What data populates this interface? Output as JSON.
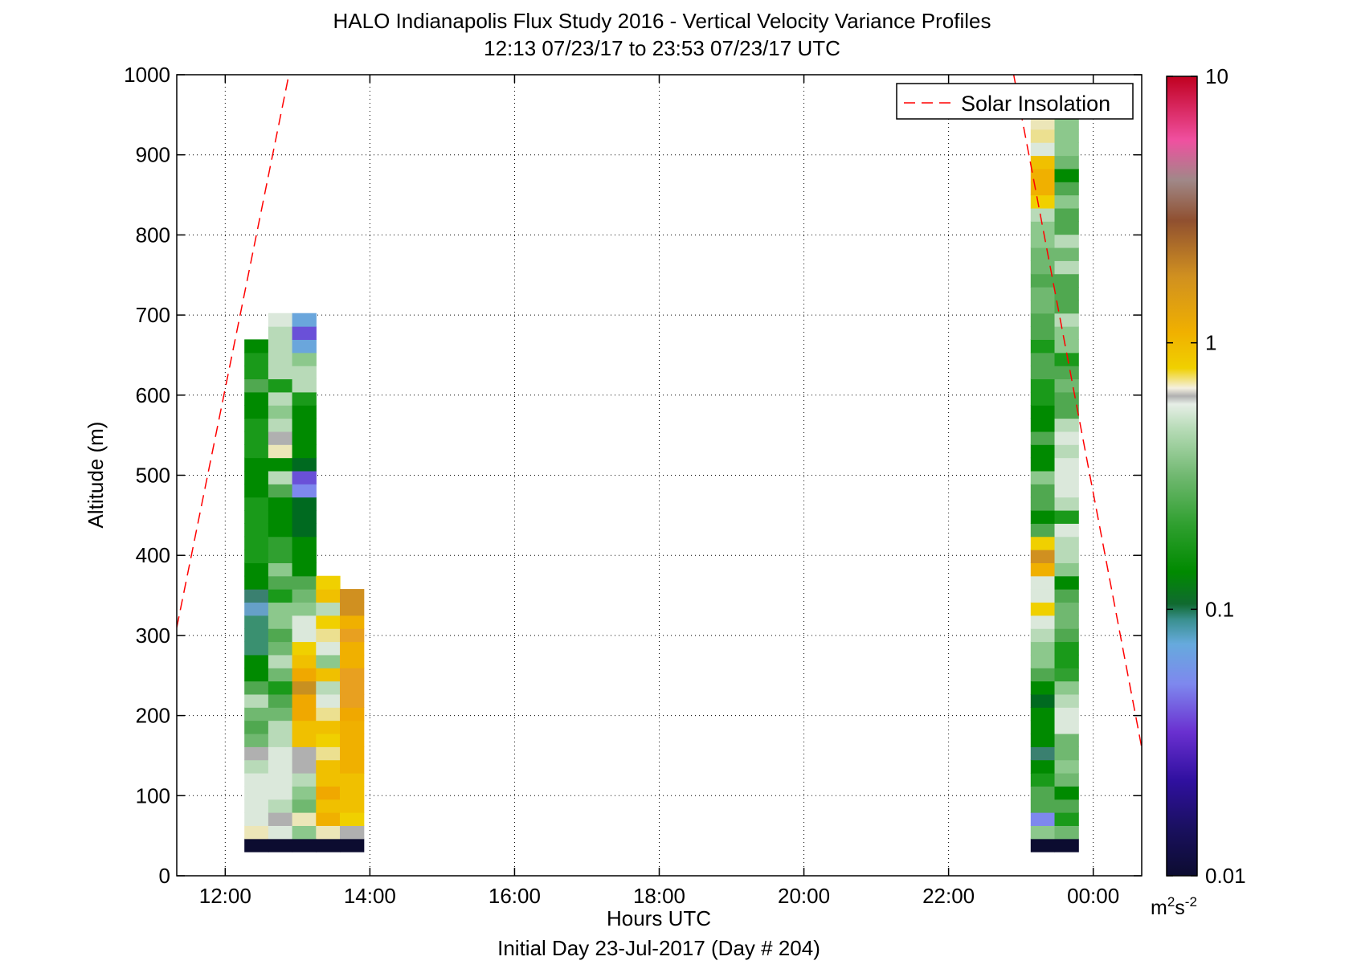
{
  "chart_data": {
    "type": "heatmap",
    "title": "HALO Indianapolis Flux Study 2016 - Vertical Velocity Variance Profiles",
    "subtitle": "12:13 07/23/17 to 23:53 07/23/17  UTC",
    "xlabel": "Hours UTC",
    "xlabel2": "Initial Day 23-Jul-2017 (Day # 204)",
    "ylabel": "Altitude (m)",
    "xlim": [
      11.33,
      24.67
    ],
    "ylim": [
      0,
      1000
    ],
    "x_ticks": [
      {
        "v": 12,
        "label": "12:00"
      },
      {
        "v": 14,
        "label": "14:00"
      },
      {
        "v": 16,
        "label": "16:00"
      },
      {
        "v": 18,
        "label": "18:00"
      },
      {
        "v": 20,
        "label": "20:00"
      },
      {
        "v": 22,
        "label": "22:00"
      },
      {
        "v": 24,
        "label": "00:00"
      }
    ],
    "y_ticks": [
      {
        "v": 0,
        "label": "0"
      },
      {
        "v": 100,
        "label": "100"
      },
      {
        "v": 200,
        "label": "200"
      },
      {
        "v": 300,
        "label": "300"
      },
      {
        "v": 400,
        "label": "400"
      },
      {
        "v": 500,
        "label": "500"
      },
      {
        "v": 600,
        "label": "600"
      },
      {
        "v": 700,
        "label": "700"
      },
      {
        "v": 800,
        "label": "800"
      },
      {
        "v": 900,
        "label": "900"
      },
      {
        "v": 1000,
        "label": "1000"
      }
    ],
    "grid": true,
    "legend": {
      "position": "top-right",
      "label": "Solar Insolation"
    },
    "colorbar": {
      "scale": "log",
      "min": 0.01,
      "max": 10,
      "ticks": [
        {
          "v": 0.01,
          "label": "0.01"
        },
        {
          "v": 0.1,
          "label": "0.1"
        },
        {
          "v": 1,
          "label": "1"
        },
        {
          "v": 10,
          "label": "10"
        }
      ],
      "unit_base": "m",
      "unit_sup1": "2",
      "unit_mid": "s",
      "unit_sup2": "-2",
      "stops": [
        [
          0.0,
          "#0c0c30"
        ],
        [
          0.06,
          "#1a1060"
        ],
        [
          0.12,
          "#3010a0"
        ],
        [
          0.18,
          "#6a30d0"
        ],
        [
          0.24,
          "#7e88ee"
        ],
        [
          0.29,
          "#66aadd"
        ],
        [
          0.32,
          "#3a9090"
        ],
        [
          0.34,
          "#106a30"
        ],
        [
          0.38,
          "#008a00"
        ],
        [
          0.44,
          "#30a030"
        ],
        [
          0.5,
          "#70b870"
        ],
        [
          0.56,
          "#b8dcb8"
        ],
        [
          0.59,
          "#e6eee6"
        ],
        [
          0.6,
          "#b0b0b0"
        ],
        [
          0.61,
          "#f4f0e0"
        ],
        [
          0.635,
          "#f0d000"
        ],
        [
          0.68,
          "#f0b000"
        ],
        [
          0.75,
          "#d09020"
        ],
        [
          0.82,
          "#905030"
        ],
        [
          0.87,
          "#a08888"
        ],
        [
          0.92,
          "#f050a0"
        ],
        [
          1.0,
          "#c00020"
        ]
      ]
    },
    "solar_insolation": {
      "series1": [
        [
          11.33,
          310
        ],
        [
          12.88,
          1000
        ]
      ],
      "series2": [
        [
          22.9,
          1000
        ],
        [
          24.67,
          160
        ]
      ]
    },
    "profiles": [
      {
        "x": 12.43,
        "width": 0.33,
        "bottom": 30,
        "bin": 16.4,
        "colors": [
          "#0c0c30",
          "#ece6b8",
          "#dbe8db",
          "#dbe8db",
          "#dbe8db",
          "#dbe8db",
          "#b8dab8",
          "#b0b0b0",
          "#70b870",
          "#50a850",
          "#70b870",
          "#b8dab8",
          "#50a850",
          "#008a00",
          "#008a00",
          "#3a9070",
          "#3a9070",
          "#3a9070",
          "#66a0c8",
          "#3a8070",
          "#008a00",
          "#008a00",
          "#1a9a1a",
          "#1a9a1a",
          "#1a9a1a",
          "#1a9a1a",
          "#1a9a1a",
          "#008a00",
          "#008a00",
          "#008a00",
          "#1a9a1a",
          "#1a9a1a",
          "#1a9a1a",
          "#008a00",
          "#008a00",
          "#50a850",
          "#1a9a1a",
          "#1a9a1a",
          "#008a00"
        ]
      },
      {
        "x": 12.76,
        "width": 0.33,
        "bottom": 30,
        "bin": 16.4,
        "colors": [
          "#0c0c30",
          "#dbe8db",
          "#b0b0b0",
          "#b8dab8",
          "#dbe8db",
          "#dbe8db",
          "#dbe8db",
          "#dbe8db",
          "#b8dab8",
          "#b8dab8",
          "#70b870",
          "#50a850",
          "#1a9a1a",
          "#70b870",
          "#b8dab8",
          "#70b870",
          "#50a850",
          "#8cc88c",
          "#8cc88c",
          "#1a9a1a",
          "#50a850",
          "#8cc88c",
          "#30a030",
          "#30a030",
          "#008a00",
          "#008a00",
          "#008a00",
          "#50a850",
          "#b8dab8",
          "#008a00",
          "#ece6b8",
          "#b0b0b0",
          "#b8dab8",
          "#8cc88c",
          "#b8dab8",
          "#1a9a1a",
          "#b8dab8",
          "#b8dab8",
          "#b8dab8",
          "#b8dab8",
          "#dbe8db"
        ]
      },
      {
        "x": 13.09,
        "width": 0.33,
        "bottom": 30,
        "bin": 16.4,
        "colors": [
          "#0c0c30",
          "#8cc88c",
          "#ece6b8",
          "#70b870",
          "#8cc88c",
          "#b8dab8",
          "#b0b0b0",
          "#b0b0b0",
          "#f0c000",
          "#f0c000",
          "#f0a800",
          "#f0a800",
          "#c89020",
          "#f0a800",
          "#f0c000",
          "#f0d000",
          "#dbe8db",
          "#dbe8db",
          "#8cc88c",
          "#70b870",
          "#50a850",
          "#008a00",
          "#008a00",
          "#008a00",
          "#006a20",
          "#006a20",
          "#006a20",
          "#7e88ee",
          "#6a50d8",
          "#006a20",
          "#008a00",
          "#008a00",
          "#008a00",
          "#008a00",
          "#1a9a1a",
          "#b8dab8",
          "#b8dab8",
          "#8cc88c",
          "#6aa6dc",
          "#6a50d8",
          "#6aa6dc"
        ]
      },
      {
        "x": 13.42,
        "width": 0.33,
        "bottom": 30,
        "bin": 16.4,
        "colors": [
          "#0c0c30",
          "#ece6b8",
          "#f0b000",
          "#f0c000",
          "#f0a800",
          "#f0c000",
          "#f0c000",
          "#ece090",
          "#f0d000",
          "#f0c000",
          "#ece090",
          "#dbe8db",
          "#b8dab8",
          "#f0c000",
          "#8cc88c",
          "#dbe8db",
          "#ece090",
          "#f0d000",
          "#b8dab8",
          "#f0c000",
          "#f0d000"
        ]
      },
      {
        "x": 13.75,
        "width": 0.33,
        "bottom": 30,
        "bin": 16.4,
        "colors": [
          "#0c0c30",
          "#b0b0b0",
          "#f0d000",
          "#f0c000",
          "#f0c000",
          "#f0c000",
          "#f0b000",
          "#f0b000",
          "#f0b000",
          "#f0b000",
          "#f0a800",
          "#e8a020",
          "#e8a020",
          "#e8a020",
          "#f0b000",
          "#f0b000",
          "#e8a020",
          "#f0b000",
          "#d09020",
          "#d09020"
        ]
      },
      {
        "x": 23.3,
        "width": 0.33,
        "bottom": 30,
        "bin": 16.4,
        "colors": [
          "#0c0c30",
          "#8cc88c",
          "#7e88ee",
          "#50a850",
          "#50a850",
          "#1a9a1a",
          "#008a00",
          "#3a8070",
          "#008a00",
          "#008a00",
          "#008a00",
          "#006a20",
          "#008a00",
          "#50a850",
          "#8cc88c",
          "#8cc88c",
          "#b8dab8",
          "#dbe8db",
          "#f0d000",
          "#dbe8db",
          "#dbe8db",
          "#f0b000",
          "#d09020",
          "#f0d000",
          "#50a850",
          "#008a00",
          "#50a850",
          "#50a850",
          "#8cc88c",
          "#008a00",
          "#008a00",
          "#50a850",
          "#008a00",
          "#008a00",
          "#1a9a1a",
          "#1a9a1a",
          "#50a850",
          "#50a850",
          "#1a9a1a",
          "#50a850",
          "#50a850",
          "#70b870",
          "#70b870",
          "#50a850",
          "#70b870",
          "#70b870",
          "#8cc88c",
          "#8cc88c",
          "#b8dab8",
          "#f0d000",
          "#f0b000",
          "#f0b000",
          "#f0c000",
          "#dbe8db",
          "#ece090",
          "#ece6b8",
          "#dbe8db",
          "#f0d000"
        ]
      },
      {
        "x": 23.63,
        "width": 0.33,
        "bottom": 30,
        "bin": 16.4,
        "colors": [
          "#0c0c30",
          "#70b870",
          "#1a9a1a",
          "#50a850",
          "#008a00",
          "#70b870",
          "#8cc88c",
          "#70b870",
          "#70b870",
          "#dbe8db",
          "#dbe8db",
          "#b8dab8",
          "#8cc88c",
          "#30a030",
          "#1a9a1a",
          "#1a9a1a",
          "#50a850",
          "#70b870",
          "#70b870",
          "#50a850",
          "#008a00",
          "#8cc88c",
          "#b8dab8",
          "#b8dab8",
          "#dbe8db",
          "#1a9a1a",
          "#b8dab8",
          "#dbe8db",
          "#dbe8db",
          "#dbe8db",
          "#b8dab8",
          "#dbe8db",
          "#b8dab8",
          "#50a850",
          "#50a850",
          "#70b870",
          "#50a850",
          "#1a9a1a",
          "#8cc88c",
          "#8cc88c",
          "#b8dab8",
          "#50a850",
          "#50a850",
          "#50a850",
          "#b8dab8",
          "#70b870",
          "#b8dab8",
          "#50a850",
          "#50a850",
          "#8cc88c",
          "#50a850",
          "#008a00",
          "#70b870",
          "#8cc88c",
          "#8cc88c",
          "#8cc88c",
          "#dbe8db",
          "#f0c000"
        ]
      }
    ]
  }
}
